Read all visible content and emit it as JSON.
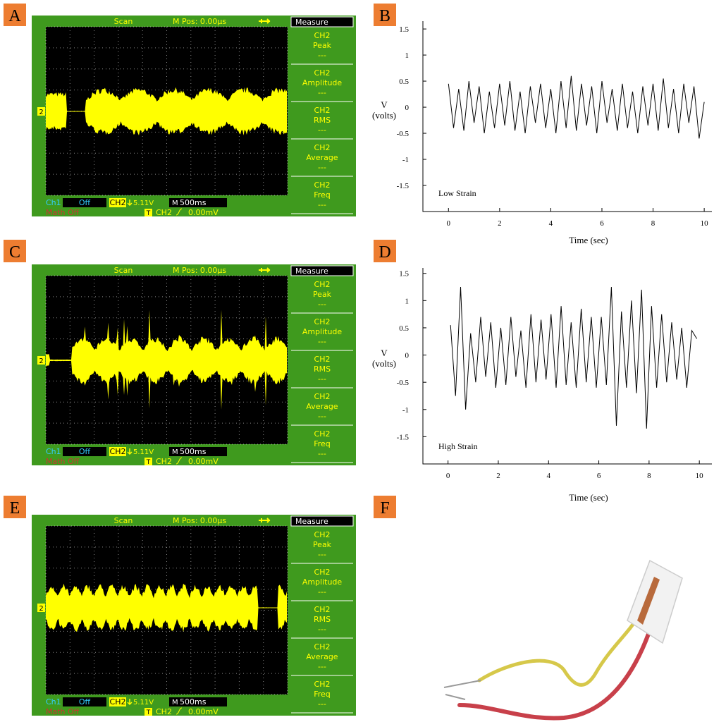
{
  "panels": [
    "A",
    "B",
    "C",
    "D",
    "E",
    "F"
  ],
  "scope": {
    "mode": "Scan",
    "mpos": "M Pos: 0.00µs",
    "menu_title": "Measure",
    "measures": [
      {
        "channel": "CH2",
        "name": "Peak",
        "value": "---"
      },
      {
        "channel": "CH2",
        "name": "Amplitude",
        "value": "---"
      },
      {
        "channel": "CH2",
        "name": "RMS",
        "value": "---"
      },
      {
        "channel": "CH2",
        "name": "Average",
        "value": "---"
      },
      {
        "channel": "CH2",
        "name": "Freq",
        "value": "---"
      }
    ],
    "ch1": "Ch1",
    "ch1_state": "Off",
    "ch2": "CH2",
    "ch2_scale": "5.11V",
    "timebase_prefix": "M",
    "timebase": "500ms",
    "math": "Math Off",
    "trigger": "T",
    "trigger_source": "CH2",
    "trigger_level": "0.00mV",
    "marker": "2"
  },
  "chart_data": [
    {
      "type": "line",
      "xlabel": "Time (sec)",
      "ylabel": [
        "V",
        "(volts)"
      ],
      "annotation": "Low Strain",
      "color": "#000000",
      "xlim": [
        -1,
        10.3
      ],
      "ylim": [
        -2,
        1.65
      ],
      "xticks": [
        0,
        2,
        4,
        6,
        8,
        10
      ],
      "yticks": [
        -1.5,
        -1,
        -0.5,
        0,
        0.5,
        1,
        1.5
      ],
      "x": [
        0,
        0.2,
        0.4,
        0.6,
        0.8,
        1,
        1.2,
        1.4,
        1.6,
        1.8,
        2,
        2.2,
        2.4,
        2.6,
        2.8,
        3,
        3.2,
        3.4,
        3.6,
        3.8,
        4,
        4.2,
        4.4,
        4.6,
        4.8,
        5,
        5.2,
        5.4,
        5.6,
        5.8,
        6,
        6.2,
        6.4,
        6.6,
        6.8,
        7,
        7.2,
        7.4,
        7.6,
        7.8,
        8,
        8.2,
        8.4,
        8.6,
        8.8,
        9,
        9.2,
        9.4,
        9.6,
        9.8,
        10
      ],
      "values": [
        0.45,
        -0.4,
        0.35,
        -0.45,
        0.5,
        -0.3,
        0.4,
        -0.5,
        0.3,
        -0.4,
        0.45,
        -0.35,
        0.5,
        -0.45,
        0.3,
        -0.5,
        0.4,
        -0.3,
        0.45,
        -0.4,
        0.35,
        -0.5,
        0.5,
        -0.4,
        0.6,
        -0.45,
        0.45,
        -0.35,
        0.4,
        -0.5,
        0.5,
        -0.3,
        0.35,
        -0.45,
        0.45,
        -0.4,
        0.3,
        -0.5,
        0.4,
        -0.35,
        0.45,
        -0.45,
        0.55,
        -0.4,
        0.35,
        -0.5,
        0.45,
        -0.3,
        0.4,
        -0.6,
        0.1
      ]
    },
    {
      "type": "line",
      "xlabel": "Time (sec)",
      "ylabel": [
        "V",
        "(volts)"
      ],
      "annotation": "High Strain",
      "color": "#000000",
      "xlim": [
        -1,
        10.5
      ],
      "ylim": [
        -2,
        1.6
      ],
      "xticks": [
        0,
        2,
        4,
        6,
        8,
        10
      ],
      "yticks": [
        -1.5,
        -1,
        -0.5,
        0,
        0.5,
        1,
        1.5
      ],
      "x": [
        0.1,
        0.3,
        0.5,
        0.7,
        0.9,
        1.1,
        1.3,
        1.5,
        1.7,
        1.9,
        2.1,
        2.3,
        2.5,
        2.7,
        2.9,
        3.1,
        3.3,
        3.5,
        3.7,
        3.9,
        4.1,
        4.3,
        4.5,
        4.7,
        4.9,
        5.1,
        5.3,
        5.5,
        5.7,
        5.9,
        6.1,
        6.3,
        6.5,
        6.7,
        6.9,
        7.1,
        7.3,
        7.5,
        7.7,
        7.9,
        8.1,
        8.3,
        8.5,
        8.7,
        8.9,
        9.1,
        9.3,
        9.5,
        9.7,
        9.9
      ],
      "values": [
        0.55,
        -0.75,
        1.25,
        -1.0,
        0.4,
        -0.5,
        0.7,
        -0.4,
        0.6,
        -0.6,
        0.5,
        -0.55,
        0.7,
        -0.4,
        0.45,
        -0.6,
        0.75,
        -0.5,
        0.65,
        -0.45,
        0.75,
        -0.6,
        0.9,
        -0.55,
        0.6,
        -0.6,
        0.85,
        -0.5,
        0.7,
        -0.6,
        0.7,
        -0.55,
        1.25,
        -1.3,
        0.8,
        -0.6,
        1.0,
        -0.7,
        1.2,
        -1.35,
        0.9,
        -0.6,
        0.75,
        -0.5,
        0.6,
        -0.45,
        0.5,
        -0.6,
        0.45,
        0.3
      ]
    }
  ]
}
